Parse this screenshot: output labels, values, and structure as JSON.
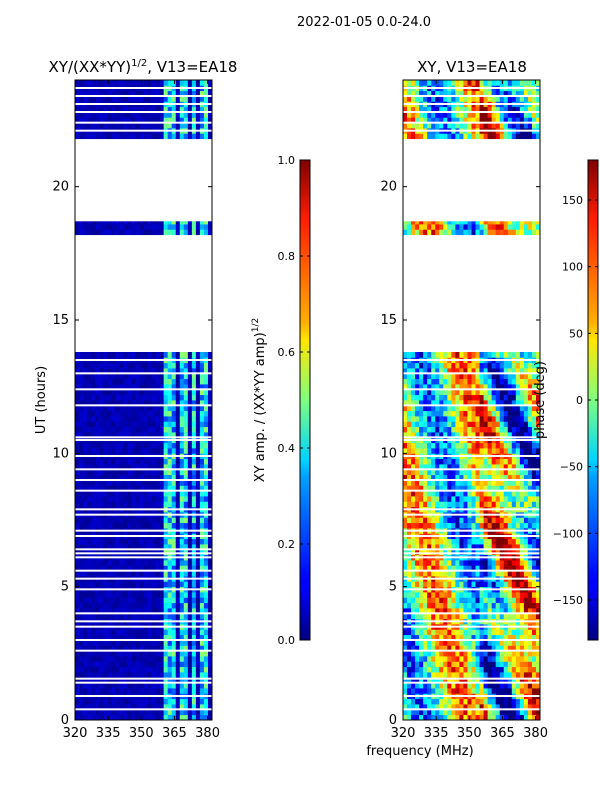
{
  "figure": {
    "suptitle": "2022-01-05 0.0-24.0",
    "shared_xlabel": "frequency (MHz)"
  },
  "chart_data": [
    {
      "type": "heatmap",
      "title_main": "XY/(XX*YY)",
      "title_exp": "1/2",
      "title_tail": ", V13=EA18",
      "ylabel": "UT (hours)",
      "xlim": [
        320,
        382
      ],
      "ylim": [
        0,
        24
      ],
      "xticks": [
        "320",
        "335",
        "350",
        "365",
        "380"
      ],
      "xtick_values": [
        320,
        335,
        350,
        365,
        380
      ],
      "yticks": [
        "0",
        "5",
        "10",
        "15",
        "20"
      ],
      "ytick_values": [
        0,
        5,
        10,
        15,
        20
      ],
      "colorbar": {
        "label_main": "XY amp. / (XX*YY amp)",
        "label_exp": "1/2",
        "range": [
          0.0,
          1.0
        ],
        "ticks": [
          "0.0",
          "0.2",
          "0.4",
          "0.6",
          "0.8",
          "1.0"
        ],
        "tick_values": [
          0.0,
          0.2,
          0.4,
          0.6,
          0.8,
          1.0
        ],
        "colormap": "jet"
      },
      "data_ut_ranges": [
        [
          0.0,
          13.8
        ],
        [
          18.2,
          18.7
        ],
        [
          21.8,
          24.0
        ]
      ],
      "blank_ut_lines": [
        0.4,
        0.9,
        1.4,
        1.55,
        2.6,
        3.0,
        3.5,
        3.7,
        4.0,
        4.9,
        5.3,
        5.6,
        6.1,
        6.25,
        6.4,
        6.9,
        7.1,
        7.7,
        7.9,
        8.6,
        9.0,
        9.4,
        9.9,
        10.5,
        10.6,
        11.8,
        12.4,
        13.0,
        13.5,
        22.1,
        22.4,
        22.8,
        23.1,
        23.4,
        23.7
      ],
      "channel_bands_mhz": [
        [
          361,
          366
        ],
        [
          368,
          371
        ],
        [
          373,
          375
        ],
        [
          377,
          380
        ]
      ],
      "background_value": 0.05,
      "band_value": 0.35
    },
    {
      "type": "heatmap",
      "title": "XY, V13=EA18",
      "ylabel": "",
      "xlim": [
        320,
        382
      ],
      "ylim": [
        0,
        24
      ],
      "xticks": [
        "320",
        "335",
        "350",
        "365",
        "380"
      ],
      "xtick_values": [
        320,
        335,
        350,
        365,
        380
      ],
      "yticks": [
        "0",
        "5",
        "10",
        "15",
        "20"
      ],
      "ytick_values": [
        0,
        5,
        10,
        15,
        20
      ],
      "colorbar": {
        "label": "phase (deg)",
        "range": [
          -180,
          180
        ],
        "ticks": [
          "−150",
          "−100",
          "−50",
          "0",
          "50",
          "100",
          "150"
        ],
        "tick_values": [
          -150,
          -100,
          -50,
          0,
          50,
          100,
          150
        ],
        "colormap": "jet"
      },
      "data_ut_ranges": [
        [
          0.0,
          13.8
        ],
        [
          18.2,
          18.7
        ],
        [
          21.8,
          24.0
        ]
      ],
      "blank_ut_lines": [
        0.4,
        0.9,
        1.4,
        1.55,
        2.6,
        3.0,
        3.5,
        3.7,
        4.0,
        4.9,
        5.3,
        5.6,
        6.1,
        6.25,
        6.4,
        6.9,
        7.1,
        7.7,
        7.9,
        8.6,
        9.0,
        9.4,
        9.9,
        10.5,
        10.6,
        11.8,
        12.4,
        13.0,
        13.5,
        22.1,
        22.4,
        22.8,
        23.1,
        23.4,
        23.7
      ]
    }
  ]
}
